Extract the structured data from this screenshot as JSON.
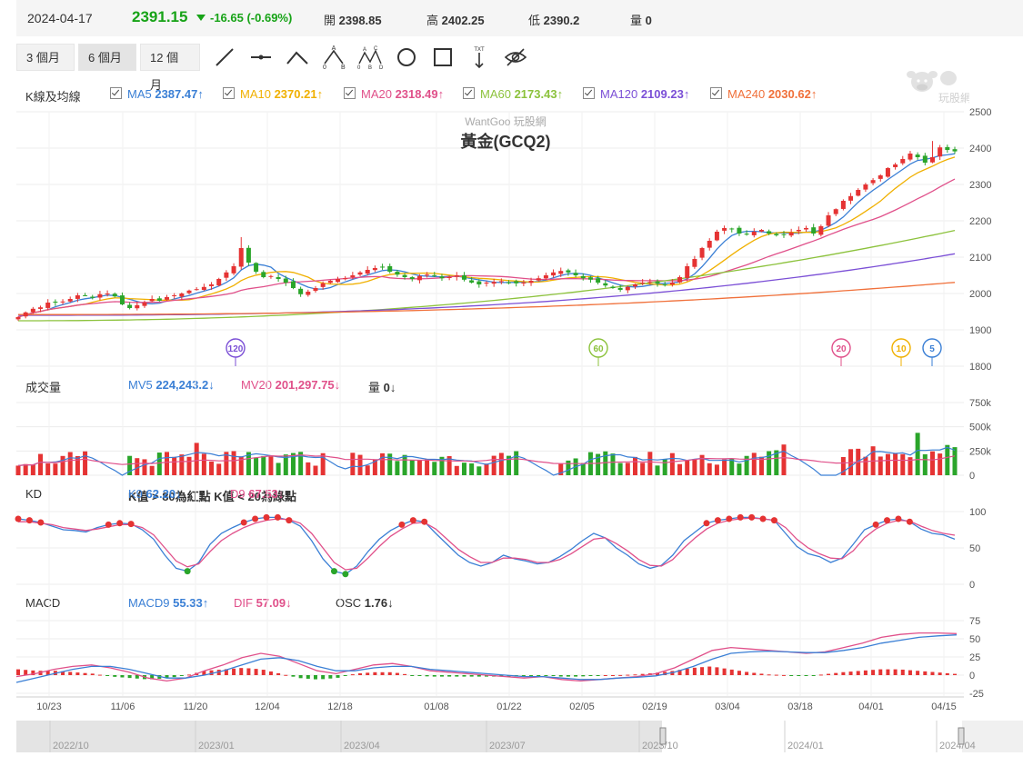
{
  "header": {
    "date": "2024-04-17",
    "price": "2391.15",
    "change": "-16.65 (-0.69%)",
    "open_label": "開",
    "open": "2398.85",
    "high_label": "高",
    "high": "2402.25",
    "low_label": "低",
    "low": "2390.2",
    "vol_label": "量",
    "vol": "0"
  },
  "toolbar": {
    "ranges": [
      "3 個月",
      "6 個月",
      "12 個月"
    ],
    "active_range": "6 個月",
    "tools": [
      "line-tool-icon",
      "segment-tool-icon",
      "angle-tool-icon",
      "abc-pattern-icon",
      "abcd-pattern-icon",
      "circle-tool-icon",
      "rectangle-tool-icon",
      "text-tool-icon",
      "hide-eye-icon"
    ]
  },
  "watermark_brand": "玩股網",
  "kline": {
    "label": "K線及均線",
    "watermark": "WantGoo 玩股網",
    "title": "黃金(GCQ2)",
    "ma": [
      {
        "name": "MA5",
        "value": "2387.47",
        "arrow": "↑",
        "color": "#3a7fd5"
      },
      {
        "name": "MA10",
        "value": "2370.21",
        "arrow": "↑",
        "color": "#f0b000"
      },
      {
        "name": "MA20",
        "value": "2318.49",
        "arrow": "↑",
        "color": "#e0508a"
      },
      {
        "name": "MA60",
        "value": "2173.43",
        "arrow": "↑",
        "color": "#8cc23c"
      },
      {
        "name": "MA120",
        "value": "2109.23",
        "arrow": "↑",
        "color": "#7b4fd6"
      },
      {
        "name": "MA240",
        "value": "2030.62",
        "arrow": "↑",
        "color": "#f0703a"
      }
    ],
    "markers": [
      {
        "label": "120",
        "color": "#7b4fd6"
      },
      {
        "label": "60",
        "color": "#8cc23c"
      },
      {
        "label": "20",
        "color": "#e0508a"
      },
      {
        "label": "10",
        "color": "#f0b000"
      },
      {
        "label": "5",
        "color": "#3a7fd5"
      }
    ]
  },
  "volume": {
    "label": "成交量",
    "mv5": {
      "name": "MV5",
      "value": "224,243.2",
      "arrow": "↓"
    },
    "mv20": {
      "name": "MV20",
      "value": "201,297.75",
      "arrow": "↓"
    },
    "vol": {
      "name": "量",
      "value": "0",
      "arrow": "↓"
    }
  },
  "kd": {
    "label": "KD",
    "k9": {
      "name": "K9",
      "value": "62.20",
      "arrow": "↓"
    },
    "d9": {
      "name": "D9",
      "value": "67.53",
      "arrow": "↓"
    },
    "note1": "K值 > 80為紅點",
    "note2": "K值 < 20為綠點"
  },
  "macd": {
    "label": "MACD",
    "macd9": {
      "name": "MACD9",
      "value": "55.33",
      "arrow": "↑"
    },
    "dif": {
      "name": "DIF",
      "value": "57.09",
      "arrow": "↓"
    },
    "osc": {
      "name": "OSC",
      "value": "1.76",
      "arrow": "↓"
    }
  },
  "navigator": {
    "labels": [
      "2022/10",
      "2023/01",
      "2023/04",
      "2023/07",
      "2023/10",
      "2024/01",
      "2024/04"
    ]
  },
  "chart_data": [
    {
      "type": "candlestick",
      "title": "黃金(GCQ2)",
      "y_ticks": [
        1800,
        1900,
        2000,
        2100,
        2200,
        2300,
        2400,
        2500
      ],
      "ylim": [
        1800,
        2500
      ],
      "x_tick_labels": [
        "10/23",
        "11/06",
        "11/20",
        "12/04",
        "12/18",
        "01/08",
        "01/22",
        "02/05",
        "02/19",
        "03/04",
        "03/18",
        "04/01",
        "04/15"
      ],
      "close_approx": [
        1935,
        1948,
        1958,
        1962,
        1975,
        1975,
        1978,
        1985,
        1995,
        1995,
        1988,
        1998,
        2000,
        1992,
        1970,
        1960,
        1968,
        1975,
        1985,
        1980,
        1990,
        1995,
        2000,
        2008,
        2012,
        2018,
        2025,
        2040,
        2058,
        2075,
        2125,
        2085,
        2060,
        2045,
        2048,
        2040,
        2030,
        2015,
        1998,
        2005,
        2015,
        2028,
        2035,
        2040,
        2042,
        2050,
        2058,
        2065,
        2070,
        2072,
        2060,
        2052,
        2045,
        2040,
        2048,
        2052,
        2048,
        2042,
        2045,
        2050,
        2038,
        2030,
        2025,
        2030,
        2032,
        2034,
        2030,
        2028,
        2030,
        2035,
        2042,
        2050,
        2058,
        2062,
        2058,
        2050,
        2042,
        2038,
        2030,
        2022,
        2015,
        2010,
        2018,
        2025,
        2030,
        2032,
        2028,
        2025,
        2030,
        2045,
        2075,
        2095,
        2125,
        2145,
        2170,
        2180,
        2178,
        2165,
        2162,
        2170,
        2175,
        2165,
        2160,
        2162,
        2168,
        2175,
        2180,
        2165,
        2185,
        2215,
        2232,
        2255,
        2268,
        2285,
        2300,
        2312,
        2325,
        2345,
        2355,
        2370,
        2385,
        2375,
        2360,
        2375,
        2402,
        2395,
        2391
      ],
      "ma_values_last": {
        "MA5": 2387.47,
        "MA10": 2370.21,
        "MA20": 2318.49,
        "MA60": 2173.43,
        "MA120": 2109.23,
        "MA240": 2030.62
      }
    },
    {
      "type": "bar",
      "title": "成交量",
      "y_ticks": [
        "0",
        "250k",
        "500k",
        "750k"
      ],
      "ylim": [
        0,
        750000
      ],
      "mv5_last": 224243.2,
      "mv20_last": 201297.75
    },
    {
      "type": "line",
      "title": "KD",
      "y_ticks": [
        0,
        50,
        100
      ],
      "ylim": [
        0,
        100
      ],
      "series": [
        {
          "name": "K9",
          "values": [
            90,
            88,
            85,
            80,
            75,
            74,
            72,
            78,
            82,
            84,
            83,
            75,
            62,
            40,
            22,
            18,
            30,
            55,
            70,
            78,
            85,
            90,
            92,
            92,
            88,
            80,
            60,
            35,
            18,
            14,
            25,
            45,
            62,
            74,
            82,
            88,
            86,
            70,
            55,
            40,
            30,
            25,
            30,
            40,
            35,
            32,
            28,
            30,
            38,
            48,
            60,
            70,
            64,
            50,
            40,
            28,
            22,
            26,
            40,
            60,
            72,
            84,
            88,
            90,
            92,
            92,
            90,
            88,
            70,
            52,
            42,
            38,
            30,
            36,
            55,
            75,
            82,
            88,
            90,
            86,
            76,
            70,
            68,
            62
          ]
        },
        {
          "name": "D9",
          "values": [
            86,
            86,
            84,
            82,
            78,
            76,
            74,
            76,
            79,
            82,
            82,
            78,
            68,
            50,
            32,
            24,
            28,
            45,
            60,
            70,
            78,
            84,
            88,
            90,
            89,
            84,
            70,
            50,
            30,
            20,
            22,
            36,
            52,
            66,
            76,
            84,
            85,
            76,
            62,
            48,
            38,
            30,
            30,
            36,
            36,
            34,
            30,
            30,
            34,
            42,
            52,
            62,
            64,
            56,
            46,
            34,
            26,
            25,
            34,
            50,
            64,
            76,
            84,
            88,
            90,
            91,
            90,
            88,
            78,
            62,
            50,
            42,
            36,
            35,
            46,
            64,
            76,
            84,
            88,
            87,
            80,
            74,
            70,
            67.53
          ]
        }
      ]
    },
    {
      "type": "line",
      "title": "MACD",
      "y_ticks": [
        -25,
        0,
        25,
        50,
        75
      ],
      "ylim": [
        -25,
        75
      ],
      "series": [
        {
          "name": "DIF",
          "values": [
            -2,
            2,
            8,
            12,
            14,
            10,
            4,
            -4,
            -8,
            -4,
            6,
            14,
            24,
            30,
            26,
            16,
            6,
            2,
            8,
            14,
            16,
            12,
            6,
            4,
            2,
            0,
            -2,
            -4,
            -2,
            -6,
            -8,
            -6,
            -4,
            -2,
            2,
            10,
            22,
            34,
            38,
            36,
            34,
            32,
            30,
            32,
            38,
            44,
            52,
            56,
            58,
            58,
            57.09
          ]
        },
        {
          "name": "MACD9",
          "values": [
            -10,
            -4,
            2,
            8,
            12,
            12,
            8,
            2,
            -4,
            -4,
            0,
            6,
            14,
            22,
            24,
            20,
            12,
            6,
            6,
            10,
            12,
            12,
            8,
            6,
            4,
            2,
            0,
            -2,
            -2,
            -4,
            -6,
            -6,
            -4,
            -3,
            -1,
            4,
            12,
            22,
            30,
            32,
            33,
            32,
            31,
            31,
            34,
            38,
            44,
            48,
            52,
            54,
            55.33
          ]
        }
      ]
    }
  ]
}
